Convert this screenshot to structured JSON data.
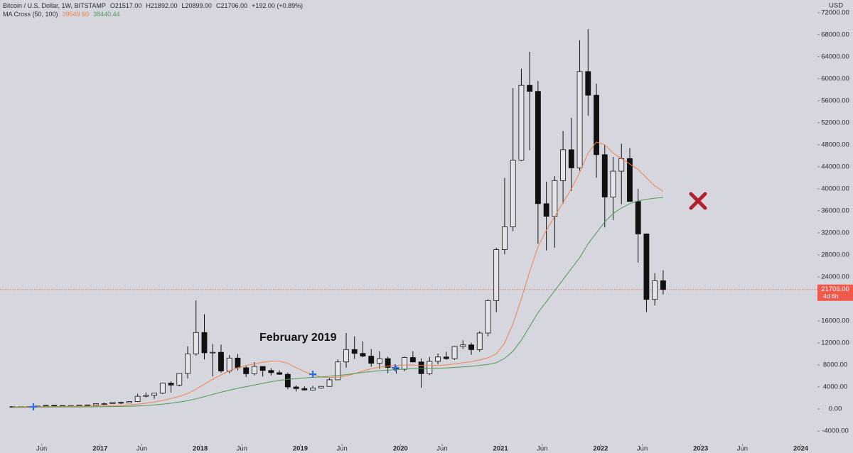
{
  "header": {
    "symbol": "Bitcoin / U.S. Dollar, 1W, BITSTAMP",
    "open": "O21517.00",
    "high": "H21892.00",
    "low": "L20899.00",
    "close": "C21706.00",
    "change": "+192.00 (+0.89%)",
    "indicator": "MA Cross (50, 100)",
    "ma_fast": "39549.60",
    "ma_slow": "38440.44"
  },
  "chart_data": {
    "type": "candlestick",
    "currency": "USD",
    "annotation": "February 2019",
    "x": [
      "2016-02",
      "2016-03",
      "2016-04",
      "2016-05",
      "2016-06",
      "2016-07",
      "2016-08",
      "2016-09",
      "2016-10",
      "2016-11",
      "2016-12",
      "2017-01",
      "2017-02",
      "2017-03",
      "2017-04",
      "2017-05",
      "2017-06",
      "2017-07",
      "2017-08",
      "2017-09",
      "2017-10",
      "2017-11",
      "2017-12",
      "2018-01",
      "2018-02",
      "2018-03",
      "2018-04",
      "2018-05",
      "2018-06",
      "2018-07",
      "2018-08",
      "2018-09",
      "2018-10",
      "2018-11",
      "2018-12",
      "2019-01",
      "2019-02",
      "2019-03",
      "2019-04",
      "2019-05",
      "2019-06",
      "2019-07",
      "2019-08",
      "2019-09",
      "2019-10",
      "2019-11",
      "2019-12",
      "2020-01",
      "2020-02",
      "2020-03",
      "2020-04",
      "2020-05",
      "2020-06",
      "2020-07",
      "2020-08",
      "2020-09",
      "2020-10",
      "2020-11",
      "2020-12",
      "2021-01",
      "2021-02",
      "2021-03",
      "2021-04",
      "2021-05",
      "2021-06",
      "2021-07",
      "2021-08",
      "2021-09",
      "2021-10",
      "2021-11",
      "2021-12",
      "2022-01",
      "2022-02",
      "2022-03",
      "2022-04",
      "2022-05",
      "2022-06",
      "2022-07",
      "2022-08"
    ],
    "open": [
      370,
      435,
      415,
      450,
      530,
      670,
      620,
      575,
      610,
      700,
      740,
      960,
      970,
      1190,
      1080,
      1350,
      2300,
      2480,
      2870,
      4700,
      4340,
      6450,
      10000,
      13900,
      10200,
      10300,
      6900,
      9250,
      7500,
      6400,
      7730,
      7000,
      6600,
      6300,
      4000,
      3700,
      3450,
      3820,
      4100,
      5300,
      8550,
      10800,
      10100,
      9600,
      8300,
      9150,
      7550,
      7200,
      9350,
      8550,
      6410,
      8650,
      9450,
      9140,
      11350,
      11650,
      10780,
      13800,
      19700,
      28950,
      33100,
      45200,
      58800,
      57700,
      37300,
      35000,
      41500,
      47100,
      43800,
      61300,
      57000,
      46200,
      38500,
      43200,
      45500,
      37700,
      31800,
      19900,
      23300
    ],
    "high": [
      440,
      440,
      470,
      550,
      780,
      700,
      630,
      620,
      720,
      760,
      980,
      1150,
      1200,
      1290,
      1350,
      2770,
      3000,
      2920,
      4750,
      5000,
      6450,
      11400,
      19700,
      17200,
      11800,
      11700,
      9800,
      10000,
      7800,
      8500,
      7760,
      7400,
      7000,
      6600,
      4300,
      4100,
      4200,
      4150,
      5600,
      9000,
      13800,
      13200,
      12300,
      10900,
      10500,
      9500,
      7750,
      9550,
      10500,
      9190,
      9470,
      10060,
      10390,
      11450,
      12480,
      12050,
      14100,
      19900,
      29300,
      42000,
      58300,
      61800,
      64900,
      59600,
      41300,
      42300,
      50500,
      52900,
      67000,
      69000,
      59100,
      48000,
      45800,
      48200,
      47400,
      40000,
      31900,
      24700,
      25200
    ],
    "low": [
      365,
      400,
      410,
      440,
      520,
      600,
      470,
      570,
      600,
      680,
      740,
      750,
      920,
      890,
      1060,
      1350,
      2100,
      1840,
      2700,
      2980,
      4110,
      5550,
      9700,
      9000,
      5900,
      6600,
      6500,
      7000,
      5800,
      6100,
      5900,
      6100,
      6200,
      3600,
      3150,
      3350,
      3380,
      3700,
      4050,
      5300,
      7500,
      9100,
      9400,
      7700,
      7300,
      6500,
      6430,
      6870,
      8450,
      3850,
      6150,
      8100,
      8950,
      8900,
      10900,
      9850,
      10380,
      13200,
      17600,
      28100,
      32300,
      45000,
      47000,
      30000,
      28800,
      29300,
      37300,
      39600,
      43300,
      53300,
      42000,
      33000,
      34300,
      37200,
      37700,
      26600,
      17600,
      18800,
      20800
    ],
    "close": [
      435,
      415,
      450,
      530,
      670,
      620,
      575,
      610,
      700,
      740,
      960,
      970,
      1190,
      1080,
      1350,
      2300,
      2480,
      2870,
      4700,
      4340,
      6450,
      10000,
      13900,
      10200,
      10300,
      6900,
      9250,
      7500,
      6400,
      7730,
      7000,
      6600,
      6300,
      4000,
      3700,
      3450,
      3820,
      4100,
      5300,
      8550,
      10800,
      10100,
      9600,
      8300,
      9150,
      7550,
      7200,
      9350,
      8550,
      6410,
      8650,
      9450,
      9140,
      11350,
      11650,
      10780,
      13800,
      19700,
      28950,
      33100,
      45200,
      58800,
      57700,
      37300,
      35000,
      41500,
      47100,
      43800,
      61300,
      57000,
      46200,
      38500,
      43200,
      45500,
      37700,
      31800,
      19900,
      23300,
      21706
    ],
    "ma_lines": [
      {
        "color": "#f0834a",
        "values": [
          380,
          390,
          400,
          410,
          420,
          440,
          460,
          480,
          500,
          520,
          550,
          580,
          620,
          680,
          750,
          880,
          1050,
          1250,
          1550,
          1900,
          2300,
          2800,
          3600,
          4500,
          5400,
          6200,
          6900,
          7500,
          7900,
          8200,
          8500,
          8700,
          8700,
          8300,
          7500,
          6800,
          6200,
          5800,
          5700,
          5800,
          6000,
          6400,
          6900,
          7300,
          7600,
          7800,
          7900,
          8000,
          8000,
          7900,
          7900,
          7900,
          8000,
          8200,
          8400,
          8600,
          8900,
          9300,
          10000,
          12000,
          15500,
          20000,
          25000,
          29500,
          32500,
          35000,
          37500,
          40000,
          43000,
          46500,
          48500,
          48000,
          46500,
          45500,
          44500,
          43500,
          42000,
          40500,
          39550
        ]
      },
      {
        "color": "#4e9a52",
        "values": [
          300,
          310,
          320,
          330,
          340,
          350,
          360,
          370,
          380,
          390,
          400,
          420,
          440,
          470,
          500,
          560,
          640,
          740,
          880,
          1050,
          1250,
          1500,
          1850,
          2250,
          2650,
          3050,
          3400,
          3750,
          4050,
          4350,
          4650,
          4950,
          5200,
          5400,
          5550,
          5650,
          5750,
          5850,
          5950,
          6100,
          6250,
          6450,
          6650,
          6800,
          6950,
          7050,
          7150,
          7250,
          7300,
          7300,
          7350,
          7400,
          7450,
          7550,
          7650,
          7750,
          7900,
          8100,
          8400,
          9200,
          10500,
          12500,
          15000,
          17500,
          19500,
          21500,
          23500,
          25500,
          27500,
          30000,
          32000,
          34000,
          35500,
          36500,
          37300,
          37800,
          38100,
          38300,
          38440
        ]
      }
    ],
    "up_color": "#e4e4ea",
    "down_color": "#111111",
    "last_price": {
      "value": 21706,
      "label": "21706.00"
    },
    "countdown": "4d 6h",
    "last_color": "#ef5a4c",
    "xlim": [
      "2016-01",
      "2024-03"
    ],
    "xticks": [
      {
        "value": "2016-06",
        "label": "Jun"
      },
      {
        "value": "2017-01",
        "label": "2017"
      },
      {
        "value": "2017-06",
        "label": "Jun"
      },
      {
        "value": "2018-01",
        "label": "2018"
      },
      {
        "value": "2018-06",
        "label": "Jun"
      },
      {
        "value": "2019-01",
        "label": "2019"
      },
      {
        "value": "2019-06",
        "label": "Jun"
      },
      {
        "value": "2020-01",
        "label": "2020"
      },
      {
        "value": "2020-06",
        "label": "Jun"
      },
      {
        "value": "2021-01",
        "label": "2021"
      },
      {
        "value": "2021-06",
        "label": "Jun"
      },
      {
        "value": "2022-01",
        "label": "2022"
      },
      {
        "value": "2022-06",
        "label": "Jun"
      },
      {
        "value": "2023-01",
        "label": "2023"
      },
      {
        "value": "2023-06",
        "label": "Jun"
      },
      {
        "value": "2024-01",
        "label": "2024"
      }
    ],
    "ylim": [
      -6320,
      74300
    ],
    "yticks": [
      {
        "value": -4000,
        "label": "-4000.00"
      },
      {
        "value": 0,
        "label": "0.00"
      },
      {
        "value": 4000,
        "label": "4000.00"
      },
      {
        "value": 8000,
        "label": "8000.00"
      },
      {
        "value": 12000,
        "label": "12000.00"
      },
      {
        "value": 16000,
        "label": "16000.00"
      },
      {
        "value": 20000,
        "label": "20000.00"
      },
      {
        "value": 24000,
        "label": "24000.00"
      },
      {
        "value": 28000,
        "label": "28000.00"
      },
      {
        "value": 32000,
        "label": "32000.00"
      },
      {
        "value": 36000,
        "label": "36000.00"
      },
      {
        "value": 40000,
        "label": "40000.00"
      },
      {
        "value": 44000,
        "label": "44000.00"
      },
      {
        "value": 48000,
        "label": "48000.00"
      },
      {
        "value": 52000,
        "label": "52000.00"
      },
      {
        "value": 56000,
        "label": "56000.00"
      },
      {
        "value": 60000,
        "label": "60000.00"
      },
      {
        "value": 64000,
        "label": "64000.00"
      },
      {
        "value": 68000,
        "label": "68000.00"
      },
      {
        "value": 72000,
        "label": "72000.00"
      }
    ]
  }
}
